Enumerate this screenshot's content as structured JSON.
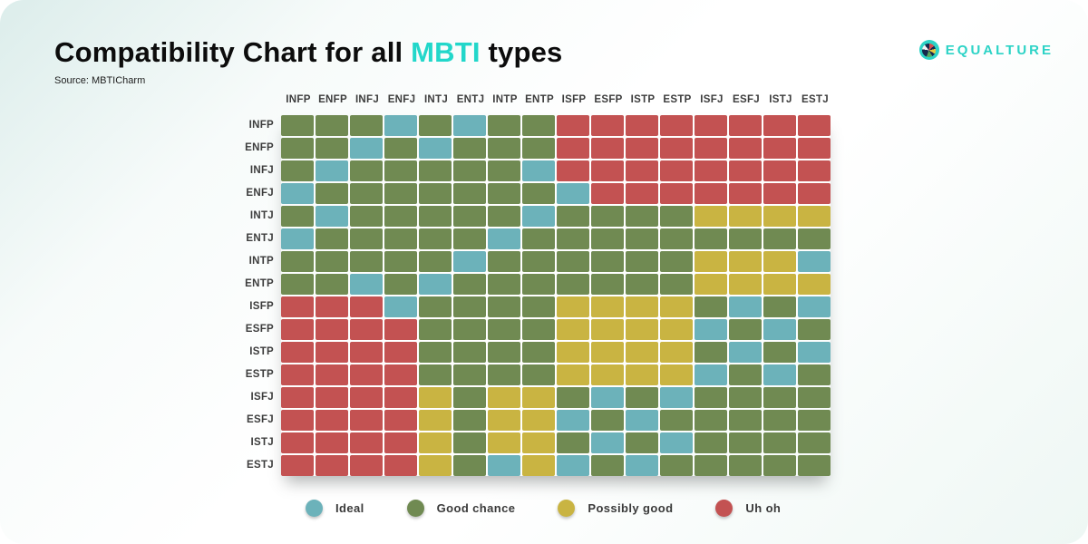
{
  "header": {
    "title_prefix": "Compatibility Chart for all ",
    "title_highlight": "MBTI",
    "title_suffix": " types",
    "source": "Source: MBTICharm",
    "highlight_color": "#22d7ca"
  },
  "logo": {
    "text": "EQUALTURE",
    "color": "#2cd3c6"
  },
  "legend": [
    {
      "key": "B",
      "label": "Ideal",
      "color": "#6cb2ba"
    },
    {
      "key": "G",
      "label": "Good chance",
      "color": "#708a52"
    },
    {
      "key": "Y",
      "label": "Possibly good",
      "color": "#c9b442"
    },
    {
      "key": "R",
      "label": "Uh oh",
      "color": "#c35252"
    }
  ],
  "chart_data": {
    "type": "heatmap",
    "title": "Compatibility Chart for all MBTI types",
    "source": "MBTICharm",
    "x_labels": [
      "INFP",
      "ENFP",
      "INFJ",
      "ENFJ",
      "INTJ",
      "ENTJ",
      "INTP",
      "ENTP",
      "ISFP",
      "ESFP",
      "ISTP",
      "ESTP",
      "ISFJ",
      "ESFJ",
      "ISTJ",
      "ESTJ"
    ],
    "y_labels": [
      "INFP",
      "ENFP",
      "INFJ",
      "ENFJ",
      "INTJ",
      "ENTJ",
      "INTP",
      "ENTP",
      "ISFP",
      "ESFP",
      "ISTP",
      "ESTP",
      "ISFJ",
      "ESFJ",
      "ISTJ",
      "ESTJ"
    ],
    "value_legend": {
      "B": "Ideal",
      "G": "Good chance",
      "Y": "Possibly good",
      "R": "Uh oh"
    },
    "colors": {
      "B": "#6cb2ba",
      "G": "#708a52",
      "Y": "#c9b442",
      "R": "#c35252"
    },
    "matrix": [
      "GGGBGBGGRRRRRRRR",
      "GGBGBGGGRRRRRRRR",
      "GBGGGGGBRRRRRRRR",
      "BGGGGGGGBRRRRRRR",
      "GBGGGGGBGGGGYYYY",
      "BGGGGGBGGGGGGGGG",
      "GGGGGBGGGGGGYYYB",
      "GGBGBGGGGGGGYYYY",
      "RRRBGGGGYYYYGBGB",
      "RRRRGGGGYYYYBGBG",
      "RRRRGGGGYYYYGBGB",
      "RRRRGGGGYYYYBGBG",
      "RRRRYGYYGBGBGGGG",
      "RRRRYGYYBGBGGGGG",
      "RRRRYGYYGBGBGGGG",
      "RRRRYGBYBGBGGGGG"
    ],
    "legend_position": "bottom",
    "grid_gap": true
  }
}
